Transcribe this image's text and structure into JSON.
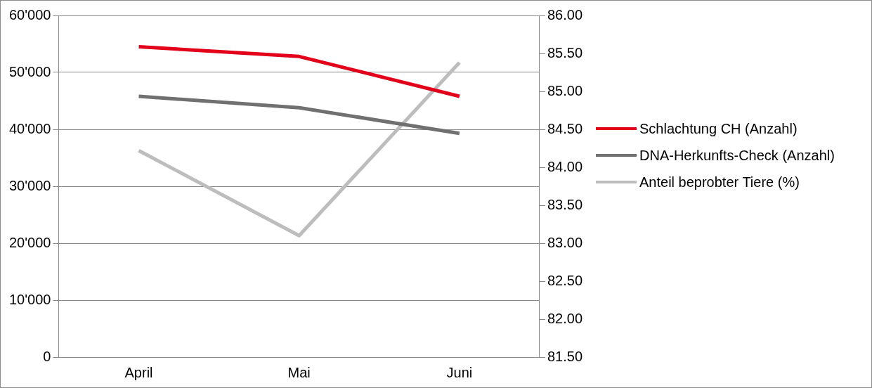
{
  "chart_data": {
    "type": "line",
    "categories": [
      "April",
      "Mai",
      "Juni"
    ],
    "series": [
      {
        "name": "Schlachtung CH (Anzahl)",
        "color": "#e2001a",
        "values": [
          54500,
          52800,
          45800
        ]
      },
      {
        "name": "DNA-Herkunfts-Check (Anzahl)",
        "color": "#707070",
        "values": [
          45800,
          43800,
          39300
        ]
      },
      {
        "name": "Anteil beprobter Tiere (%)",
        "color": "#bdbdbd",
        "values": [
          84.22,
          83.1,
          85.38
        ],
        "axis": "y2"
      }
    ],
    "ylim": [
      0,
      60000
    ],
    "yticks": [
      0,
      {
        "value": 10000,
        "label": "10'000"
      },
      {
        "value": 20000,
        "label": "20'000"
      },
      {
        "value": 30000,
        "label": "30'000"
      },
      {
        "value": 40000,
        "label": "40'000"
      },
      {
        "value": 50000,
        "label": "50'000"
      },
      {
        "value": 60000,
        "label": "60'000"
      }
    ],
    "y2lim": [
      81.5,
      86
    ],
    "y2ticks": [
      {
        "value": 81.5,
        "label": "81.50"
      },
      {
        "value": 82,
        "label": "82.00"
      },
      {
        "value": 82.5,
        "label": "82.50"
      },
      {
        "value": 83,
        "label": "83.00"
      },
      {
        "value": 83.5,
        "label": "83.50"
      },
      {
        "value": 84,
        "label": "84.00"
      },
      {
        "value": 84.5,
        "label": "84.50"
      },
      {
        "value": 85,
        "label": "85.00"
      },
      {
        "value": 85.5,
        "label": "85.50"
      },
      {
        "value": 86,
        "label": "86.00"
      }
    ],
    "grid": "y",
    "legend": "right",
    "marker": "none",
    "line_style": "solid"
  }
}
